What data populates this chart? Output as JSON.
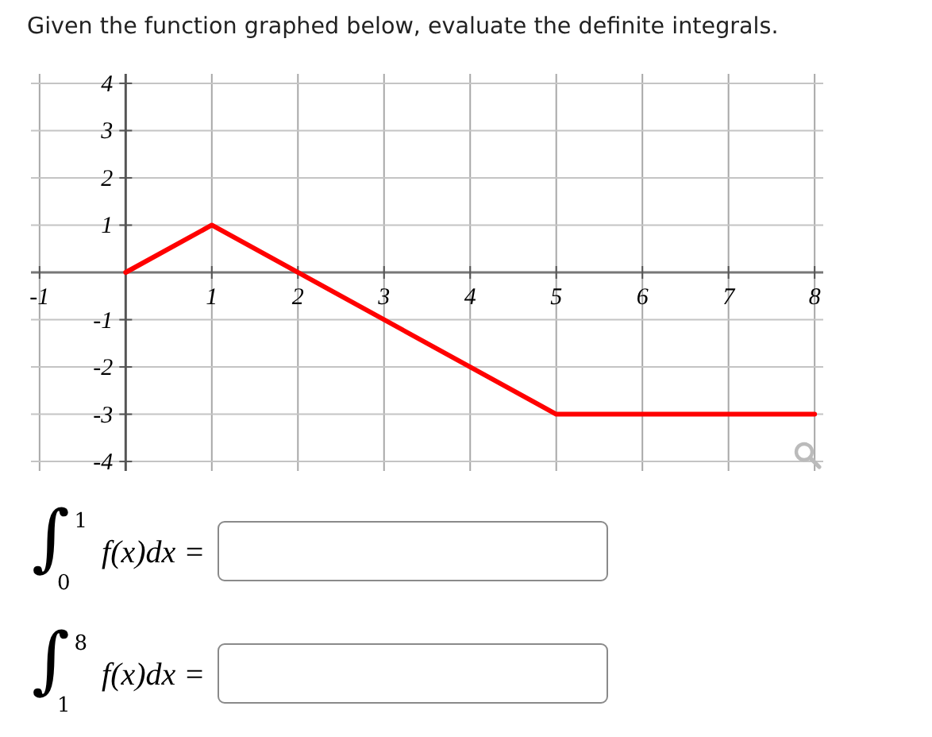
{
  "chart_data": {
    "type": "line",
    "title": "Given the function graphed below, evaluate the definite integrals.",
    "x": [
      0,
      1,
      5,
      8
    ],
    "series": [
      {
        "color": "#ff0000",
        "values": [
          0,
          1,
          -3,
          -3
        ]
      }
    ],
    "xlim": [
      -1.1,
      8.1
    ],
    "ylim": [
      -4.2,
      4.2
    ],
    "xticks": [
      -1,
      1,
      2,
      3,
      4,
      5,
      6,
      7,
      8
    ],
    "yticks": [
      -4,
      -3,
      -2,
      -1,
      1,
      2,
      3,
      4
    ],
    "grid": true,
    "line_style": "solid",
    "annotations": [
      "∫$_{0}$$^{1}$ f(x)dx =",
      "∫$_{1}$$^{8}$ f(x)dx ="
    ]
  }
}
